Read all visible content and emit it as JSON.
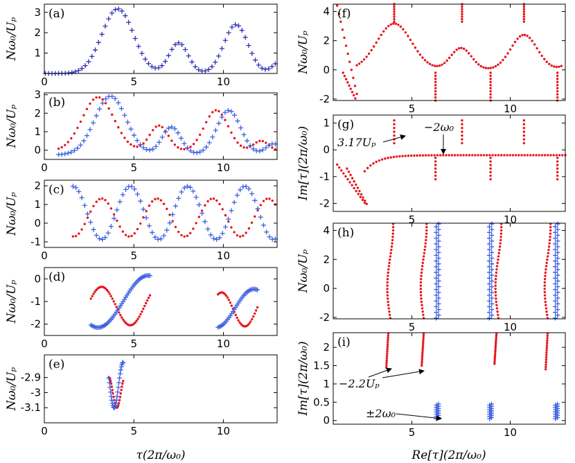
{
  "figure": {
    "colors": {
      "red": "#e8141b",
      "blue": "#3b5fe0",
      "darkblue": "#2e2fb5"
    },
    "left_xlabel": "τ(2π/ω₀)",
    "right_xlabel": "Re[τ](2π/ω₀)",
    "ylabel_energy": "Nω₀/Uₚ",
    "ylabel_im": "Im[τ](2π/ω₀)"
  },
  "chart_data": [
    {
      "id": "a",
      "tag": "(a)",
      "type": "scatter",
      "xlim": [
        0,
        13
      ],
      "ylim": [
        0,
        3.4
      ],
      "xticks": [
        "0",
        "5",
        "10"
      ],
      "xtick_vals": [
        0,
        5,
        10
      ],
      "yticks": [
        "1",
        "2",
        "3"
      ],
      "ytick_vals": [
        1,
        2,
        3
      ],
      "series": [
        {
          "name": "blue-plus",
          "kind": "plus-dark",
          "curve": "a"
        }
      ]
    },
    {
      "id": "b",
      "tag": "(b)",
      "type": "scatter",
      "xlim": [
        0,
        13
      ],
      "ylim": [
        -0.5,
        3.1
      ],
      "xticks": [
        "0",
        "5",
        "10"
      ],
      "xtick_vals": [
        0,
        5,
        10
      ],
      "yticks": [
        "0",
        "1",
        "2",
        "3"
      ],
      "ytick_vals": [
        0,
        1,
        2,
        3
      ],
      "series": [
        {
          "name": "red-dot",
          "kind": "red",
          "curve": "b_red"
        },
        {
          "name": "blue-plus",
          "kind": "plus",
          "curve": "b_blue"
        }
      ]
    },
    {
      "id": "c",
      "tag": "(c)",
      "type": "scatter",
      "xlim": [
        0,
        13
      ],
      "ylim": [
        -1.3,
        2.3
      ],
      "xticks": [
        "0",
        "5",
        "10"
      ],
      "xtick_vals": [
        0,
        5,
        10
      ],
      "yticks": [
        "-1",
        "0",
        "1",
        "2"
      ],
      "ytick_vals": [
        -1,
        0,
        1,
        2
      ],
      "series": [
        {
          "name": "red-dot",
          "kind": "red",
          "curve": "c_red"
        },
        {
          "name": "blue-plus",
          "kind": "plus",
          "curve": "c_blue"
        }
      ]
    },
    {
      "id": "d",
      "tag": "(d)",
      "type": "scatter",
      "xlim": [
        0,
        13
      ],
      "ylim": [
        -2.5,
        0.5
      ],
      "xticks": [
        "0",
        "5",
        "10"
      ],
      "xtick_vals": [
        0,
        5,
        10
      ],
      "yticks": [
        "-2",
        "-1",
        "0"
      ],
      "ytick_vals": [
        -2,
        -1,
        0
      ],
      "series": [
        {
          "name": "red-dot",
          "kind": "red",
          "curve": "d_red"
        },
        {
          "name": "blue-plus",
          "kind": "plus",
          "curve": "d_blue"
        }
      ]
    },
    {
      "id": "e",
      "tag": "(e)",
      "type": "scatter",
      "xlim": [
        0,
        13
      ],
      "ylim": [
        -3.2,
        -2.75
      ],
      "xticks": [
        "0",
        "5",
        "10"
      ],
      "xtick_vals": [
        0,
        5,
        10
      ],
      "yticks": [
        "-3.1",
        "-3",
        "-2.9"
      ],
      "ytick_vals": [
        -3.1,
        -3,
        -2.9
      ],
      "series": [
        {
          "name": "red-dot",
          "kind": "red",
          "curve": "e_red"
        },
        {
          "name": "blue-plus",
          "kind": "plus",
          "curve": "e_blue"
        }
      ]
    },
    {
      "id": "f",
      "tag": "(f)",
      "type": "scatter",
      "xlim": [
        1,
        12.8
      ],
      "ylim": [
        -2.1,
        4.5
      ],
      "xticks": [
        "5",
        "10"
      ],
      "xtick_vals": [
        5,
        10
      ],
      "yticks": [
        "-2",
        "0",
        "2",
        "4"
      ],
      "ytick_vals": [
        -2,
        0,
        2,
        4
      ],
      "series": [
        {
          "name": "red-dot",
          "kind": "red",
          "curve": "f_red"
        }
      ]
    },
    {
      "id": "g",
      "tag": "(g)",
      "type": "scatter",
      "xlim": [
        1,
        12.8
      ],
      "ylim": [
        -2.3,
        1.3
      ],
      "xticks": [
        "5",
        "10"
      ],
      "xtick_vals": [
        5,
        10
      ],
      "yticks": [
        "-2",
        "-1",
        "0",
        "1"
      ],
      "ytick_vals": [
        -2,
        -1,
        0,
        1
      ],
      "annotations": [
        "3.17Uₚ",
        "−2ω₀"
      ],
      "series": [
        {
          "name": "red-dot",
          "kind": "red",
          "curve": "g_red"
        }
      ]
    },
    {
      "id": "h",
      "tag": "(h)",
      "type": "scatter",
      "xlim": [
        1,
        12.8
      ],
      "ylim": [
        -2.1,
        4.5
      ],
      "xticks": [
        "5",
        "10"
      ],
      "xtick_vals": [
        5,
        10
      ],
      "yticks": [
        "-2",
        "0",
        "2",
        "4"
      ],
      "ytick_vals": [
        -2,
        0,
        2,
        4
      ],
      "series": [
        {
          "name": "red-dot",
          "kind": "red",
          "curve": "h_red"
        },
        {
          "name": "blue-plus",
          "kind": "plus",
          "curve": "h_blue"
        }
      ]
    },
    {
      "id": "i",
      "tag": "(i)",
      "type": "scatter",
      "xlim": [
        1,
        12.8
      ],
      "ylim": [
        -0.1,
        2.4
      ],
      "xticks": [
        "5",
        "10"
      ],
      "xtick_vals": [
        5,
        10
      ],
      "yticks": [
        "0",
        "0.5",
        "1",
        "1.5",
        "2"
      ],
      "ytick_vals": [
        0,
        0.5,
        1,
        1.5,
        2
      ],
      "annotations": [
        "−2.2Uₚ",
        "±2ω₀"
      ],
      "series": [
        {
          "name": "red-dot",
          "kind": "red",
          "curve": "i_red"
        },
        {
          "name": "blue-plus",
          "kind": "plus",
          "curve": "i_blue"
        }
      ]
    }
  ]
}
